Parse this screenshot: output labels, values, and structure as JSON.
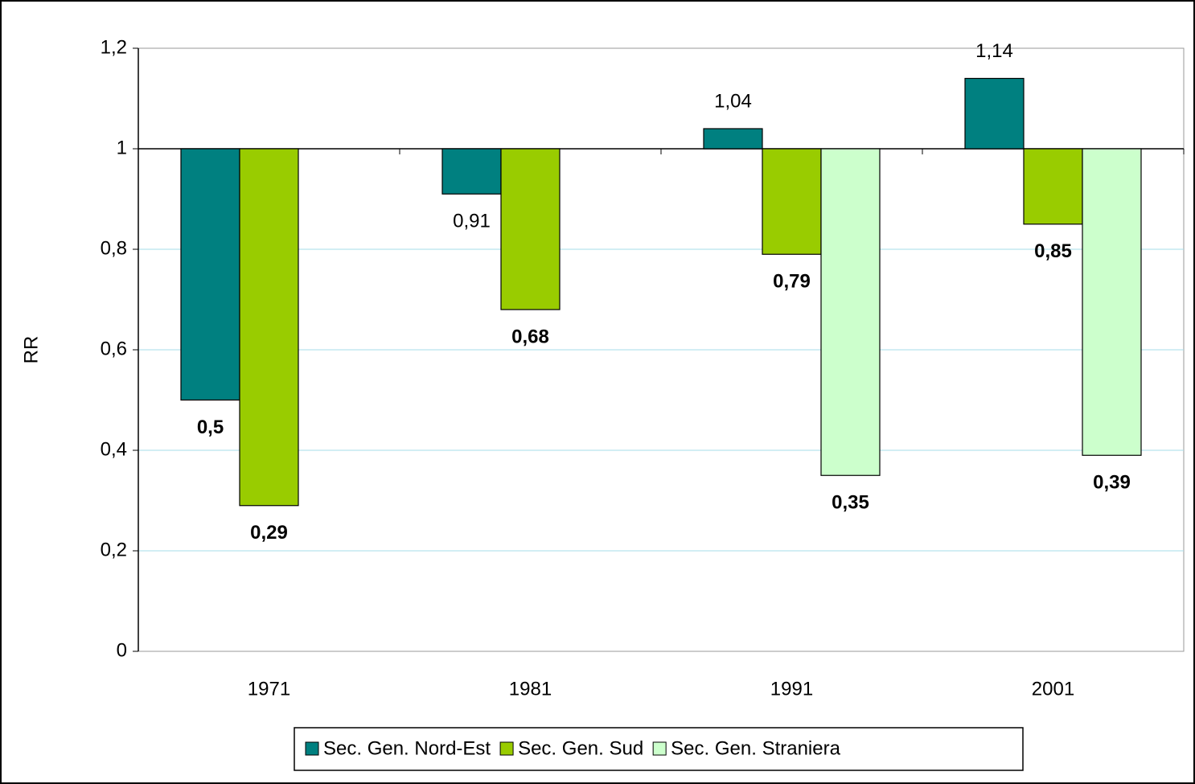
{
  "chart_data": {
    "type": "bar",
    "y_label": "RR",
    "categories": [
      "1971",
      "1981",
      "1991",
      "2001"
    ],
    "series": [
      {
        "name": "Sec. Gen. Nord-Est",
        "color": "#008080",
        "values": [
          0.5,
          0.91,
          1.04,
          1.14
        ],
        "value_labels": [
          "0,5",
          "0,91",
          "1,04",
          "1,14"
        ],
        "value_label_bold": [
          true,
          false,
          false,
          false
        ]
      },
      {
        "name": "Sec. Gen. Sud",
        "color": "#99cc00",
        "values": [
          0.29,
          0.68,
          0.79,
          0.85
        ],
        "value_labels": [
          "0,29",
          "0,68",
          "0,79",
          "0,85"
        ],
        "value_label_bold": [
          true,
          true,
          true,
          true
        ]
      },
      {
        "name": "Sec. Gen. Straniera",
        "color": "#ccffcc",
        "values": [
          null,
          null,
          0.35,
          0.39
        ],
        "value_labels": [
          null,
          null,
          "0,35",
          "0,39"
        ],
        "value_label_bold": [
          false,
          false,
          true,
          true
        ]
      }
    ],
    "bar_base": 1,
    "ylim": [
      0,
      1.2
    ],
    "yticks": [
      0,
      {
        "value": 0.2,
        "label": "0,2"
      },
      {
        "value": 0.4,
        "label": "0,4"
      },
      {
        "value": 0.6,
        "label": "0,6"
      },
      {
        "value": 0.8,
        "label": "0,8"
      },
      1,
      {
        "value": 1.2,
        "label": "1,2"
      }
    ],
    "grid": true,
    "legend": "bottom"
  }
}
